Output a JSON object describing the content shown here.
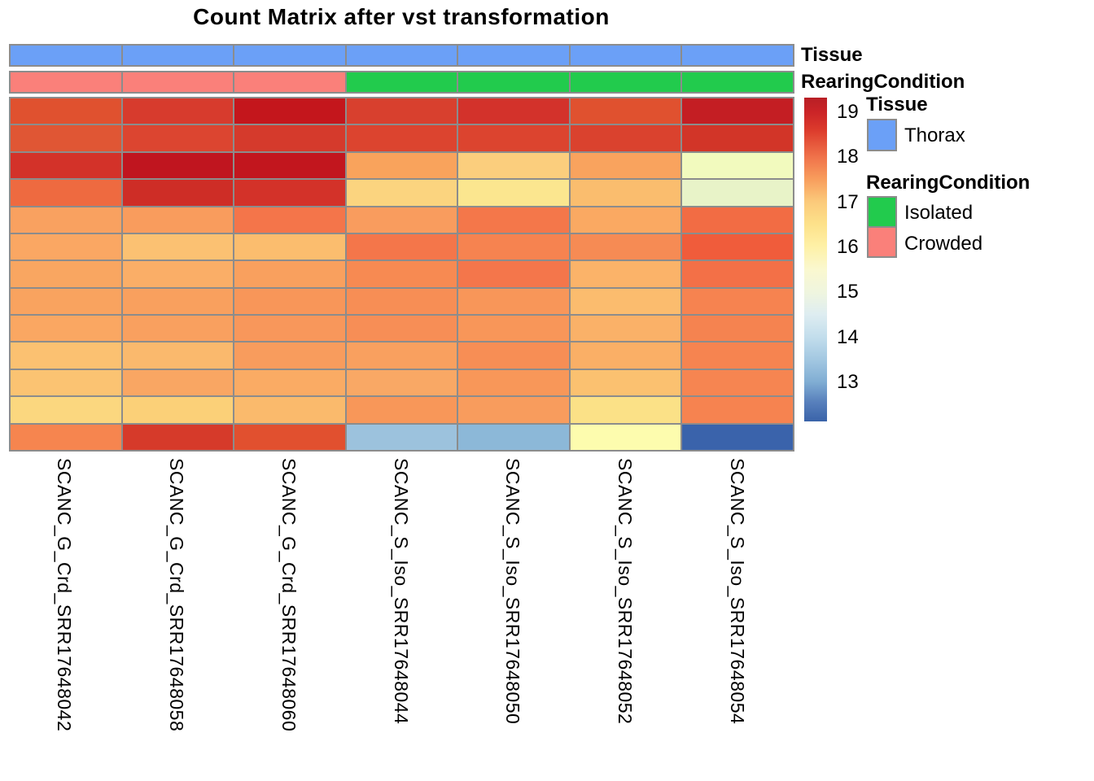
{
  "title": "Count Matrix after vst transformation",
  "row_annotation_titles": {
    "tissue": "Tissue",
    "rearing": "RearingCondition"
  },
  "legend": {
    "tissue_header": "Tissue",
    "rearing_header": "RearingCondition",
    "items": {
      "thorax": {
        "label": "Thorax",
        "color": "#6BA0F7"
      },
      "isolated": {
        "label": "Isolated",
        "color": "#22CB4D"
      },
      "crowded": {
        "label": "Crowded",
        "color": "#FA807A"
      }
    }
  },
  "chart_data": {
    "type": "heatmap",
    "title": "Count Matrix after vst transformation",
    "columns": [
      "SCANC_G_Crd_SRR17648042",
      "SCANC_G_Crd_SRR17648058",
      "SCANC_G_Crd_SRR17648060",
      "SCANC_S_Iso_SRR17648044",
      "SCANC_S_Iso_SRR17648050",
      "SCANC_S_Iso_SRR17648052",
      "SCANC_S_Iso_SRR17648054"
    ],
    "n_rows": 13,
    "row_labels": [],
    "column_annotations": {
      "Tissue": [
        "Thorax",
        "Thorax",
        "Thorax",
        "Thorax",
        "Thorax",
        "Thorax",
        "Thorax"
      ],
      "RearingCondition": [
        "Crowded",
        "Crowded",
        "Crowded",
        "Isolated",
        "Isolated",
        "Isolated",
        "Isolated"
      ]
    },
    "annotation_colors": {
      "Thorax": "#6BA0F7",
      "Isolated": "#22CB4D",
      "Crowded": "#FA807A"
    },
    "grid_color": "#8C8C8C",
    "values": [
      [
        18.3,
        18.5,
        19.2,
        18.5,
        18.6,
        18.3,
        19.1
      ],
      [
        18.2,
        18.4,
        18.5,
        18.4,
        18.4,
        18.5,
        18.6
      ],
      [
        18.6,
        19.2,
        19.2,
        17.4,
        16.9,
        17.4,
        15.4
      ],
      [
        18.0,
        18.8,
        18.6,
        16.8,
        16.4,
        17.2,
        15.1
      ],
      [
        17.4,
        17.5,
        17.9,
        17.5,
        17.9,
        17.3,
        18.0
      ],
      [
        17.3,
        17.0,
        17.1,
        17.9,
        17.7,
        17.6,
        18.2
      ],
      [
        17.4,
        17.2,
        17.4,
        17.6,
        17.9,
        17.2,
        17.9
      ],
      [
        17.4,
        17.4,
        17.5,
        17.6,
        17.5,
        17.1,
        17.7
      ],
      [
        17.3,
        17.4,
        17.5,
        17.6,
        17.5,
        17.2,
        17.7
      ],
      [
        17.0,
        17.2,
        17.4,
        17.4,
        17.6,
        17.3,
        17.7
      ],
      [
        17.0,
        17.3,
        17.3,
        17.3,
        17.5,
        17.1,
        17.7
      ],
      [
        16.8,
        16.9,
        17.2,
        17.5,
        17.4,
        16.5,
        17.7
      ],
      [
        17.7,
        18.5,
        18.3,
        13.6,
        13.3,
        15.7,
        12.3
      ]
    ],
    "cell_colors": [
      [
        "#E0512F",
        "#D73B2D",
        "#C4161C",
        "#D8402E",
        "#D3322B",
        "#E0512F",
        "#C41E23"
      ],
      [
        "#E05634",
        "#DC4530",
        "#D53A2C",
        "#DC442F",
        "#DC442F",
        "#DA422E",
        "#D23528"
      ],
      [
        "#D33229",
        "#C0151F",
        "#C2161E",
        "#F9A35C",
        "#FBCE7D",
        "#F9A35E",
        "#F2FABE"
      ],
      [
        "#EE6A40",
        "#CE2D26",
        "#D33229",
        "#FBD47F",
        "#FBE68F",
        "#FABD6E",
        "#E8F3C8"
      ],
      [
        "#F9A160",
        "#F99C5D",
        "#F4754A",
        "#F99C5E",
        "#F4774A",
        "#FAA962",
        "#F26C44"
      ],
      [
        "#FAA763",
        "#FBC172",
        "#FBBD6E",
        "#F4764A",
        "#F68350",
        "#F68B54",
        "#F05C3B"
      ],
      [
        "#F9A661",
        "#FAAE67",
        "#F9A05E",
        "#F78A52",
        "#F4764B",
        "#FBB369",
        "#F37047"
      ],
      [
        "#F9A35F",
        "#F9A05E",
        "#F89659",
        "#F78E55",
        "#F89659",
        "#FBBC6E",
        "#F68350"
      ],
      [
        "#FAA762",
        "#F9A05F",
        "#F8975B",
        "#F78E56",
        "#F89659",
        "#FAB168",
        "#F58350"
      ],
      [
        "#FBC171",
        "#FAB96D",
        "#F89C5D",
        "#F9A05F",
        "#F78E55",
        "#FAAF66",
        "#F68450"
      ],
      [
        "#FBC372",
        "#F9A663",
        "#FAAB64",
        "#F9A865",
        "#F89759",
        "#FBC170",
        "#F68551"
      ],
      [
        "#FBD77F",
        "#FBD078",
        "#FABA6C",
        "#F89759",
        "#F89C5D",
        "#FBE187",
        "#F68350"
      ],
      [
        "#F6854F",
        "#D63A2A",
        "#E1502F",
        "#9CC2DD",
        "#8CB8D8",
        "#FDFCAE",
        "#3A63AB"
      ]
    ],
    "colorbar": {
      "ticks": [
        "19",
        "18",
        "17",
        "16",
        "15",
        "14",
        "13"
      ],
      "range": [
        12.1,
        19.3
      ],
      "stops": [
        {
          "pos": 0.0,
          "color": "#B81F26"
        },
        {
          "pos": 0.045,
          "color": "#CB2427"
        },
        {
          "pos": 0.1,
          "color": "#DC3B2C"
        },
        {
          "pos": 0.186,
          "color": "#F0744B"
        },
        {
          "pos": 0.25,
          "color": "#F89C5C"
        },
        {
          "pos": 0.322,
          "color": "#FBCA7B"
        },
        {
          "pos": 0.39,
          "color": "#FDE18A"
        },
        {
          "pos": 0.457,
          "color": "#FEF0A5"
        },
        {
          "pos": 0.53,
          "color": "#FAF8CF"
        },
        {
          "pos": 0.603,
          "color": "#EFF5DF"
        },
        {
          "pos": 0.67,
          "color": "#DEEDF1"
        },
        {
          "pos": 0.741,
          "color": "#C2DDEC"
        },
        {
          "pos": 0.81,
          "color": "#A2C7E1"
        },
        {
          "pos": 0.879,
          "color": "#80ADD3"
        },
        {
          "pos": 0.94,
          "color": "#5880BC"
        },
        {
          "pos": 1.0,
          "color": "#3A63A9"
        }
      ]
    }
  }
}
